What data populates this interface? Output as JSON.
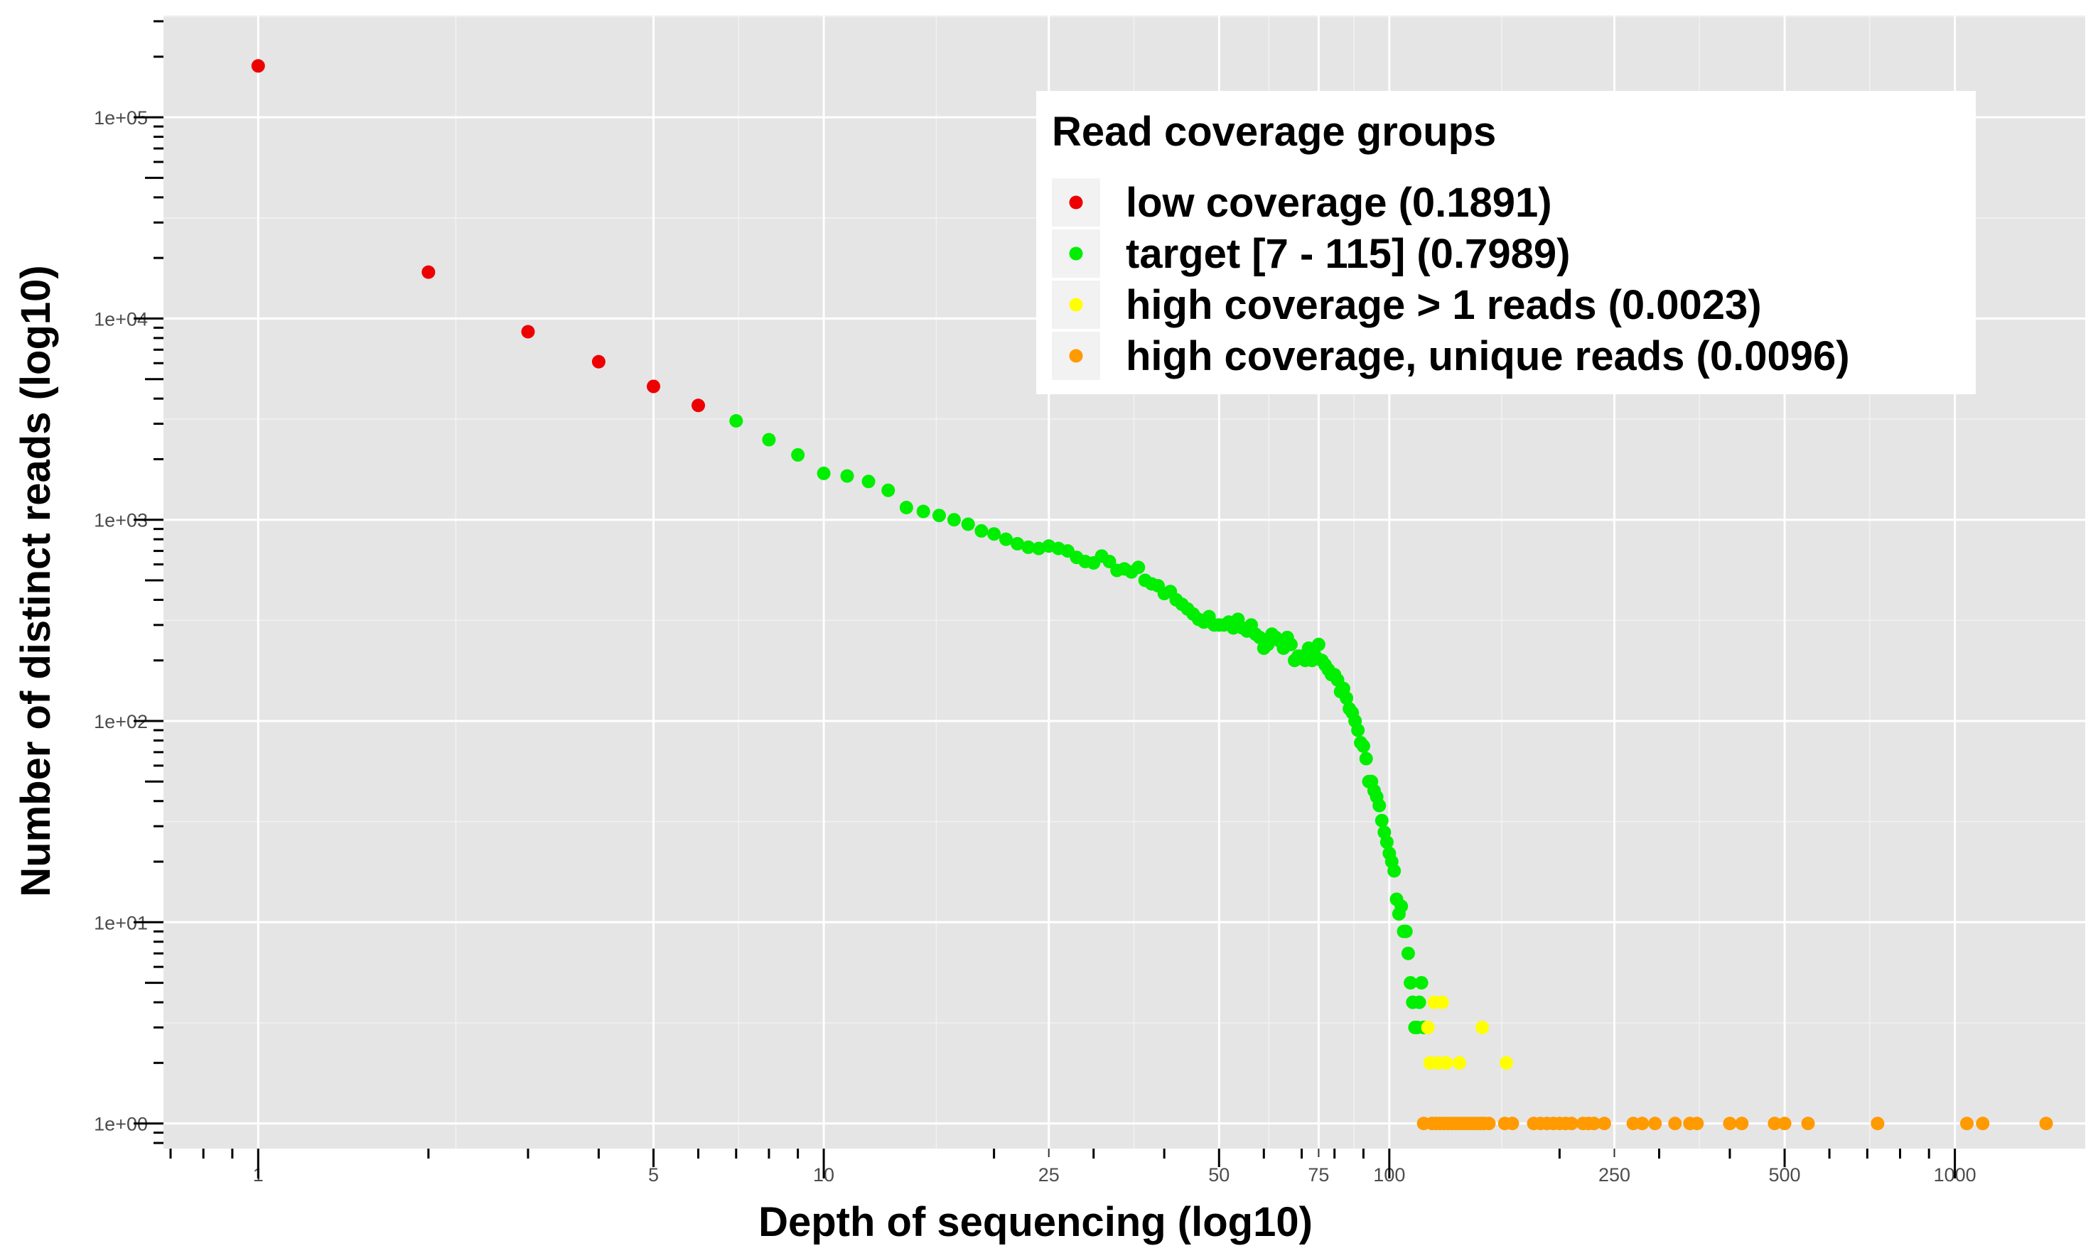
{
  "chart_data": {
    "type": "scatter",
    "xlabel": "Depth of sequencing (log10)",
    "ylabel": "Number of distinct reads (log10)",
    "x_scale": "log10",
    "y_scale": "log10",
    "xlim": [
      0.68,
      1700
    ],
    "ylim": [
      0.75,
      320000
    ],
    "x_ticks": [
      1,
      5,
      10,
      25,
      50,
      75,
      100,
      250,
      500,
      1000
    ],
    "x_tick_labels": [
      "1",
      "5",
      "10",
      "25",
      "50",
      "75",
      "100",
      "250",
      "500",
      "1000"
    ],
    "y_ticks": [
      1,
      10,
      100,
      1000,
      10000,
      100000
    ],
    "y_tick_labels": [
      "1e+00",
      "1e+01",
      "1e+02",
      "1e+03",
      "1e+04",
      "1e+05"
    ],
    "grid": true,
    "background": "#e5e5e5",
    "legend": {
      "title": "Read coverage groups",
      "position": "top-right"
    },
    "series": [
      {
        "name": "low coverage (0.1891)",
        "color": "#ee0000",
        "points": [
          [
            1,
            180000
          ],
          [
            2,
            17000
          ],
          [
            3,
            8600
          ],
          [
            4,
            6100
          ],
          [
            5,
            4600
          ],
          [
            6,
            3700
          ]
        ]
      },
      {
        "name": "target [7 - 115] (0.7989)",
        "color": "#00ee00",
        "points": [
          [
            7,
            3100
          ],
          [
            8,
            2500
          ],
          [
            9,
            2100
          ],
          [
            10,
            1700
          ],
          [
            11,
            1650
          ],
          [
            12,
            1550
          ],
          [
            13,
            1400
          ],
          [
            14,
            1150
          ],
          [
            15,
            1100
          ],
          [
            16,
            1050
          ],
          [
            17,
            1000
          ],
          [
            18,
            950
          ],
          [
            19,
            880
          ],
          [
            20,
            850
          ],
          [
            21,
            800
          ],
          [
            22,
            760
          ],
          [
            23,
            730
          ],
          [
            24,
            720
          ],
          [
            25,
            740
          ],
          [
            26,
            720
          ],
          [
            27,
            700
          ],
          [
            28,
            650
          ],
          [
            29,
            620
          ],
          [
            30,
            610
          ],
          [
            31,
            660
          ],
          [
            32,
            620
          ],
          [
            33,
            560
          ],
          [
            34,
            570
          ],
          [
            35,
            550
          ],
          [
            36,
            580
          ],
          [
            37,
            500
          ],
          [
            38,
            480
          ],
          [
            39,
            470
          ],
          [
            40,
            430
          ],
          [
            41,
            440
          ],
          [
            42,
            400
          ],
          [
            43,
            380
          ],
          [
            44,
            360
          ],
          [
            45,
            340
          ],
          [
            46,
            320
          ],
          [
            47,
            310
          ],
          [
            48,
            330
          ],
          [
            49,
            300
          ],
          [
            50,
            300
          ],
          [
            51,
            300
          ],
          [
            52,
            310
          ],
          [
            53,
            290
          ],
          [
            54,
            320
          ],
          [
            55,
            290
          ],
          [
            56,
            280
          ],
          [
            57,
            300
          ],
          [
            58,
            270
          ],
          [
            59,
            260
          ],
          [
            60,
            230
          ],
          [
            61,
            240
          ],
          [
            62,
            270
          ],
          [
            63,
            260
          ],
          [
            64,
            250
          ],
          [
            65,
            230
          ],
          [
            66,
            260
          ],
          [
            67,
            240
          ],
          [
            68,
            200
          ],
          [
            69,
            210
          ],
          [
            70,
            210
          ],
          [
            71,
            200
          ],
          [
            72,
            230
          ],
          [
            73,
            200
          ],
          [
            74,
            210
          ],
          [
            75,
            240
          ],
          [
            76,
            200
          ],
          [
            77,
            190
          ],
          [
            78,
            180
          ],
          [
            79,
            170
          ],
          [
            80,
            170
          ],
          [
            81,
            160
          ],
          [
            82,
            140
          ],
          [
            83,
            145
          ],
          [
            84,
            130
          ],
          [
            85,
            115
          ],
          [
            86,
            110
          ],
          [
            87,
            100
          ],
          [
            88,
            90
          ],
          [
            89,
            78
          ],
          [
            90,
            75
          ],
          [
            91,
            65
          ],
          [
            92,
            50
          ],
          [
            93,
            50
          ],
          [
            94,
            45
          ],
          [
            95,
            42
          ],
          [
            96,
            38
          ],
          [
            97,
            32
          ],
          [
            98,
            28
          ],
          [
            99,
            25
          ],
          [
            100,
            22
          ],
          [
            101,
            20
          ],
          [
            102,
            18
          ],
          [
            103,
            13
          ],
          [
            104,
            11
          ],
          [
            105,
            12
          ],
          [
            106,
            9
          ],
          [
            107,
            9
          ],
          [
            108,
            7
          ],
          [
            109,
            5
          ],
          [
            110,
            4
          ],
          [
            111,
            3
          ],
          [
            112,
            3
          ],
          [
            113,
            4
          ],
          [
            114,
            5
          ],
          [
            115,
            3
          ]
        ]
      },
      {
        "name": "high coverage > 1 reads (0.0023)",
        "color": "#ffff00",
        "points": [
          [
            117,
            3
          ],
          [
            118,
            2
          ],
          [
            120,
            4
          ],
          [
            122,
            2
          ],
          [
            124,
            4
          ],
          [
            126,
            2
          ],
          [
            133,
            2
          ],
          [
            146,
            3
          ],
          [
            161,
            2
          ]
        ]
      },
      {
        "name": "high coverage, unique reads (0.0096)",
        "color": "#ff9a00",
        "points": [
          [
            115,
            1
          ],
          [
            119,
            1
          ],
          [
            121,
            1
          ],
          [
            123,
            1
          ],
          [
            125,
            1
          ],
          [
            127,
            1
          ],
          [
            129,
            1
          ],
          [
            131,
            1
          ],
          [
            133,
            1
          ],
          [
            135,
            1
          ],
          [
            137,
            1
          ],
          [
            139,
            1
          ],
          [
            141,
            1
          ],
          [
            143,
            1
          ],
          [
            145,
            1
          ],
          [
            147,
            1
          ],
          [
            150,
            1
          ],
          [
            160,
            1
          ],
          [
            165,
            1
          ],
          [
            180,
            1
          ],
          [
            185,
            1
          ],
          [
            190,
            1
          ],
          [
            195,
            1
          ],
          [
            200,
            1
          ],
          [
            205,
            1
          ],
          [
            210,
            1
          ],
          [
            220,
            1
          ],
          [
            225,
            1
          ],
          [
            230,
            1
          ],
          [
            240,
            1
          ],
          [
            270,
            1
          ],
          [
            280,
            1
          ],
          [
            295,
            1
          ],
          [
            320,
            1
          ],
          [
            340,
            1
          ],
          [
            350,
            1
          ],
          [
            400,
            1
          ],
          [
            420,
            1
          ],
          [
            480,
            1
          ],
          [
            500,
            1
          ],
          [
            550,
            1
          ],
          [
            730,
            1
          ],
          [
            1050,
            1
          ],
          [
            1120,
            1
          ],
          [
            1450,
            1
          ]
        ]
      }
    ]
  }
}
